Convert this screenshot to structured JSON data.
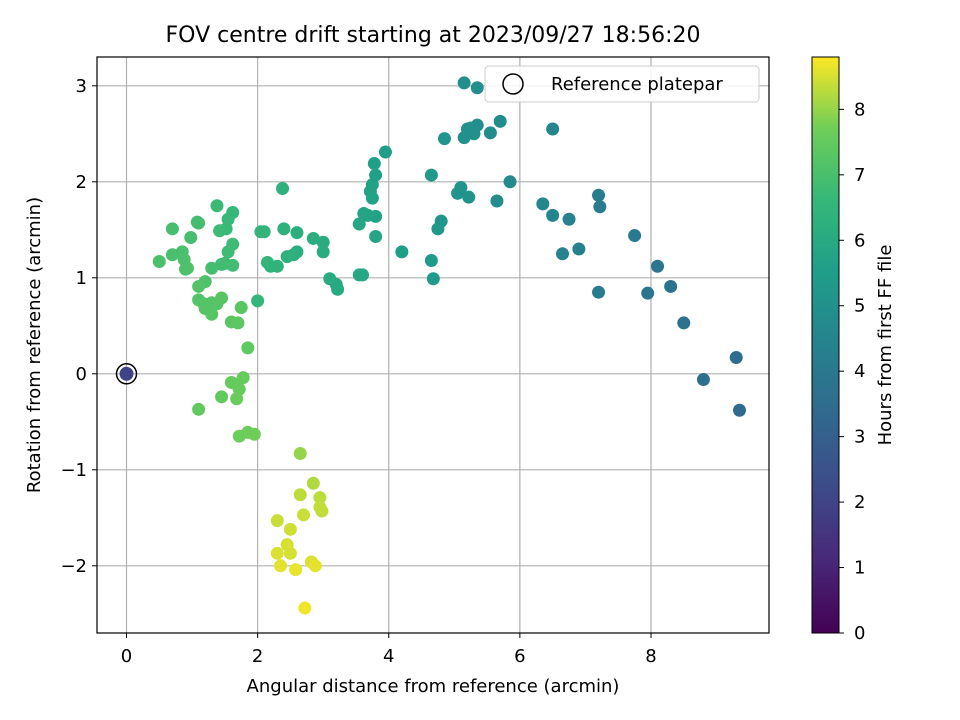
{
  "chart_data": {
    "type": "scatter",
    "title": "FOV centre drift starting at 2023/09/27 18:56:20",
    "xlabel": "Angular distance from reference (arcmin)",
    "ylabel": "Rotation from reference (arcmin)",
    "xlim": [
      -0.45,
      9.8
    ],
    "ylim": [
      -2.7,
      3.3
    ],
    "xticks": [
      0,
      2,
      4,
      6,
      8
    ],
    "xtick_labels": [
      "0",
      "2",
      "4",
      "6",
      "8"
    ],
    "yticks": [
      -2,
      -1,
      0,
      1,
      2,
      3
    ],
    "ytick_labels": [
      "−2",
      "−1",
      "0",
      "1",
      "2",
      "3"
    ],
    "grid": true,
    "colormap": "viridis",
    "colorbar": {
      "label": "Hours from first FF file",
      "range": [
        0,
        8.8
      ],
      "ticks": [
        0,
        1,
        2,
        3,
        4,
        5,
        6,
        7,
        8
      ],
      "tick_labels": [
        "0",
        "1",
        "2",
        "3",
        "4",
        "5",
        "6",
        "7",
        "8"
      ]
    },
    "legend": {
      "position": "top-right",
      "entries": [
        "Reference platepar"
      ]
    },
    "reference_point": {
      "x": 0,
      "y": 0,
      "hours": 2.0
    },
    "points": [
      [
        9.35,
        -0.38,
        3.4
      ],
      [
        9.3,
        0.17,
        3.5
      ],
      [
        8.8,
        -0.06,
        3.6
      ],
      [
        8.5,
        0.53,
        3.7
      ],
      [
        8.3,
        0.91,
        3.8
      ],
      [
        8.1,
        1.12,
        3.85
      ],
      [
        7.95,
        0.84,
        3.9
      ],
      [
        7.75,
        1.44,
        4.0
      ],
      [
        7.22,
        1.74,
        4.1
      ],
      [
        7.2,
        1.86,
        4.15
      ],
      [
        7.2,
        0.85,
        4.1
      ],
      [
        6.9,
        1.3,
        4.3
      ],
      [
        6.75,
        1.61,
        4.35
      ],
      [
        6.65,
        1.25,
        4.4
      ],
      [
        6.5,
        1.65,
        4.5
      ],
      [
        6.5,
        2.55,
        4.5
      ],
      [
        6.35,
        1.77,
        4.55
      ],
      [
        5.85,
        2.0,
        4.7
      ],
      [
        5.65,
        1.8,
        4.8
      ],
      [
        5.55,
        2.51,
        4.85
      ],
      [
        5.7,
        2.63,
        4.8
      ],
      [
        5.35,
        2.59,
        4.9
      ],
      [
        5.3,
        2.5,
        4.95
      ],
      [
        5.2,
        2.55,
        5.0
      ],
      [
        5.15,
        2.46,
        5.0
      ],
      [
        5.15,
        3.03,
        4.9
      ],
      [
        5.35,
        2.98,
        4.9
      ],
      [
        5.25,
        2.56,
        4.95
      ],
      [
        5.22,
        1.84,
        5.05
      ],
      [
        5.05,
        1.88,
        5.1
      ],
      [
        5.1,
        1.94,
        5.1
      ],
      [
        4.85,
        2.45,
        5.15
      ],
      [
        4.8,
        1.59,
        5.2
      ],
      [
        4.75,
        1.51,
        5.25
      ],
      [
        4.65,
        2.07,
        5.3
      ],
      [
        4.68,
        0.99,
        5.35
      ],
      [
        4.65,
        1.18,
        5.35
      ],
      [
        4.2,
        1.27,
        5.5
      ],
      [
        3.95,
        2.31,
        5.55
      ],
      [
        3.8,
        2.07,
        5.6
      ],
      [
        3.78,
        2.19,
        5.6
      ],
      [
        3.75,
        1.97,
        5.65
      ],
      [
        3.72,
        1.9,
        5.65
      ],
      [
        3.8,
        1.64,
        5.7
      ],
      [
        3.75,
        1.83,
        5.7
      ],
      [
        3.68,
        1.65,
        5.75
      ],
      [
        3.62,
        1.67,
        5.75
      ],
      [
        3.8,
        1.43,
        5.8
      ],
      [
        3.55,
        1.56,
        5.85
      ],
      [
        3.55,
        1.03,
        5.9
      ],
      [
        3.6,
        1.03,
        5.9
      ],
      [
        3.22,
        0.88,
        6.0
      ],
      [
        3.2,
        0.93,
        6.0
      ],
      [
        3.1,
        0.99,
        6.05
      ],
      [
        3.0,
        1.37,
        6.1
      ],
      [
        3.0,
        1.27,
        6.1
      ],
      [
        2.85,
        1.41,
        6.15
      ],
      [
        2.6,
        1.47,
        6.2
      ],
      [
        2.6,
        1.27,
        6.2
      ],
      [
        2.55,
        1.24,
        6.25
      ],
      [
        2.4,
        1.51,
        6.3
      ],
      [
        2.45,
        1.22,
        6.3
      ],
      [
        2.38,
        1.93,
        6.3
      ],
      [
        2.3,
        1.12,
        6.4
      ],
      [
        2.2,
        1.12,
        6.4
      ],
      [
        2.15,
        1.16,
        6.45
      ],
      [
        2.1,
        1.48,
        6.5
      ],
      [
        2.05,
        1.48,
        6.5
      ],
      [
        2.0,
        0.76,
        6.55
      ],
      [
        1.62,
        1.68,
        6.6
      ],
      [
        1.55,
        1.61,
        6.65
      ],
      [
        1.52,
        1.51,
        6.7
      ],
      [
        1.38,
        1.75,
        6.7
      ],
      [
        1.42,
        1.49,
        6.75
      ],
      [
        1.62,
        1.35,
        6.75
      ],
      [
        1.55,
        1.27,
        6.8
      ],
      [
        1.5,
        1.15,
        6.8
      ],
      [
        1.45,
        1.14,
        6.85
      ],
      [
        1.62,
        1.13,
        6.85
      ],
      [
        1.3,
        1.1,
        6.9
      ],
      [
        1.1,
        1.57,
        6.9
      ],
      [
        1.08,
        1.58,
        6.9
      ],
      [
        0.7,
        1.51,
        6.95
      ],
      [
        0.98,
        1.42,
        6.95
      ],
      [
        0.85,
        1.27,
        7.0
      ],
      [
        0.7,
        1.24,
        7.0
      ],
      [
        0.5,
        1.17,
        7.05
      ],
      [
        0.88,
        1.19,
        7.05
      ],
      [
        0.9,
        1.09,
        7.05
      ],
      [
        0.93,
        1.1,
        7.1
      ],
      [
        1.2,
        0.96,
        7.1
      ],
      [
        1.1,
        0.91,
        7.15
      ],
      [
        1.1,
        0.77,
        7.15
      ],
      [
        1.18,
        0.73,
        7.2
      ],
      [
        1.2,
        0.68,
        7.2
      ],
      [
        1.3,
        0.74,
        7.2
      ],
      [
        1.38,
        0.73,
        7.25
      ],
      [
        1.45,
        0.79,
        7.25
      ],
      [
        1.3,
        0.62,
        7.25
      ],
      [
        1.75,
        0.69,
        7.3
      ],
      [
        1.6,
        0.54,
        7.3
      ],
      [
        1.7,
        0.53,
        7.35
      ],
      [
        1.85,
        0.27,
        7.4
      ],
      [
        1.1,
        -0.37,
        7.45
      ],
      [
        1.45,
        -0.24,
        7.45
      ],
      [
        1.6,
        -0.09,
        7.5
      ],
      [
        1.68,
        -0.11,
        7.5
      ],
      [
        1.72,
        -0.16,
        7.55
      ],
      [
        1.78,
        -0.04,
        7.55
      ],
      [
        1.68,
        -0.26,
        7.6
      ],
      [
        1.72,
        -0.65,
        7.65
      ],
      [
        1.85,
        -0.61,
        7.65
      ],
      [
        1.95,
        -0.63,
        7.7
      ],
      [
        2.65,
        -0.83,
        8.0
      ],
      [
        2.85,
        -1.14,
        8.2
      ],
      [
        2.65,
        -1.26,
        8.3
      ],
      [
        2.95,
        -1.29,
        8.3
      ],
      [
        2.95,
        -1.39,
        8.35
      ],
      [
        2.98,
        -1.43,
        8.35
      ],
      [
        2.7,
        -1.47,
        8.4
      ],
      [
        2.3,
        -1.53,
        8.4
      ],
      [
        2.5,
        -1.62,
        8.45
      ],
      [
        2.45,
        -1.78,
        8.5
      ],
      [
        2.5,
        -1.87,
        8.5
      ],
      [
        2.3,
        -1.87,
        8.55
      ],
      [
        2.82,
        -1.96,
        8.55
      ],
      [
        2.88,
        -2.0,
        8.6
      ],
      [
        2.35,
        -2.0,
        8.6
      ],
      [
        2.58,
        -2.04,
        8.65
      ],
      [
        2.72,
        -2.44,
        8.7
      ]
    ]
  }
}
